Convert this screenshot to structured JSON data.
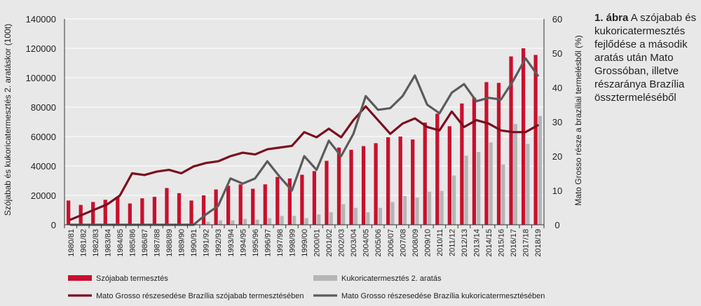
{
  "caption": {
    "label": "1. ábra",
    "text": "A szójabab és kukoricatermesztés fejlődése a második aratás után Mato Grossóban, illetve részaránya Brazília össztermeléséből"
  },
  "chart_data": {
    "type": "bar",
    "title": "",
    "xlabel": "",
    "ylabel": "Szójabab és kukoricatermesztés 2. aratáskor (100t)",
    "y2label": "Mato Grosso része a brazíliai termelésből (%)",
    "ylim": [
      0,
      140000
    ],
    "y2lim": [
      0,
      60
    ],
    "yticks": [
      "0",
      "20000",
      "40000",
      "60000",
      "80000",
      "100000",
      "120000",
      "140000"
    ],
    "y2ticks": [
      "0",
      "10",
      "20",
      "30",
      "40",
      "50",
      "60"
    ],
    "grid": true,
    "legend_position": "bottom",
    "categories": [
      "1980/81",
      "1981/82",
      "1982/83",
      "1983/84",
      "1984/85",
      "1985/86",
      "1986/87",
      "1987/88",
      "1988/89",
      "1989/90",
      "1990/91",
      "1991/92",
      "1992/93",
      "1993/94",
      "1994/95",
      "1995/96",
      "1996/97",
      "1997/98",
      "1998/99",
      "1999/00",
      "2000/01",
      "2001/02",
      "2002/03",
      "2003/04",
      "2004/05",
      "2005/06",
      "2006/07",
      "2007/08",
      "2008/09",
      "2009/10",
      "2010/11",
      "2011/12",
      "2012/13",
      "2013/14",
      "2014/15",
      "2015/16",
      "2016/17",
      "2017/18",
      "2018/19"
    ],
    "series": [
      {
        "name": "Szójabab termesztés",
        "kind": "bar",
        "axis": "left",
        "color": "#c8102e",
        "values": [
          16500,
          13500,
          15500,
          17000,
          19000,
          14500,
          18000,
          19000,
          25000,
          21500,
          16500,
          20000,
          24000,
          26500,
          27500,
          24500,
          27500,
          32500,
          31500,
          34000,
          36500,
          43500,
          52500,
          51000,
          53500,
          55500,
          59500,
          60000,
          58000,
          69500,
          75500,
          67000,
          82500,
          86500,
          97000,
          96500,
          114500,
          120000,
          115500
        ]
      },
      {
        "name": "Kukoricatermesztés 2. aratás",
        "kind": "bar",
        "axis": "left",
        "color": "#b5b5b5",
        "values": [
          0,
          0,
          0,
          0,
          0,
          0,
          0,
          0,
          500,
          500,
          500,
          2000,
          3000,
          3000,
          4000,
          3500,
          4500,
          6000,
          6000,
          4500,
          7000,
          8500,
          14000,
          11500,
          8500,
          11500,
          15500,
          19500,
          18500,
          22500,
          23000,
          33500,
          47000,
          49500,
          56000,
          41000,
          68500,
          55000,
          74000
        ]
      },
      {
        "name": "Mato Grosso részesedése Brazília szójabab termesztésében",
        "kind": "line",
        "axis": "right",
        "color": "#7a0f1f",
        "values": [
          1.5,
          3,
          4.5,
          6,
          8.5,
          15,
          14.5,
          15.5,
          16,
          15,
          17,
          18,
          18.5,
          20,
          21,
          20.5,
          22,
          22.5,
          23,
          27,
          25.5,
          28,
          25.5,
          30.5,
          34.5,
          30.5,
          26.5,
          29.5,
          31,
          28.5,
          27.5,
          33,
          28.5,
          30.5,
          29.5,
          27.5,
          27,
          27,
          29
        ]
      },
      {
        "name": "Mato Grosso részesedése Brazília kukoricatermesztésében",
        "kind": "line",
        "axis": "right",
        "color": "#5b5b5b",
        "values": [
          0,
          0,
          0,
          0,
          0,
          0,
          0,
          0,
          0,
          0,
          0,
          3,
          5.5,
          13.5,
          12,
          13.5,
          18.5,
          14,
          10,
          20,
          16,
          24.5,
          20,
          26.5,
          37.5,
          33.5,
          34,
          37.5,
          43.5,
          35,
          32.5,
          38.5,
          41,
          36,
          37,
          36.5,
          42,
          48.5,
          43.5
        ]
      }
    ]
  }
}
